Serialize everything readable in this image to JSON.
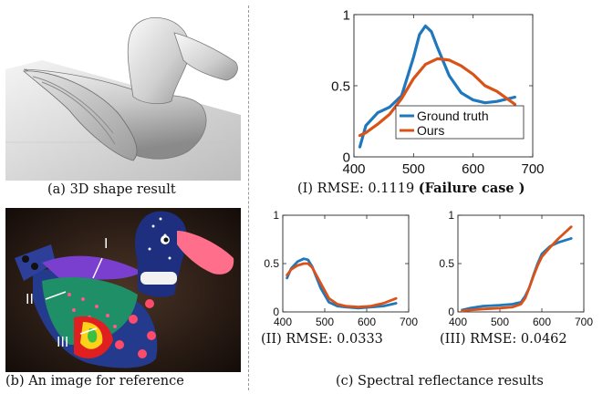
{
  "captions": {
    "a": "(a) 3D shape result",
    "b": "(b) An image for reference",
    "c": "(c) Spectral reflectance results",
    "I_prefix": "(I) RMSE: 0.1119",
    "I_note": "(Failure case )",
    "II": "(II) RMSE: 0.0333",
    "III": "(III) RMSE: 0.0462"
  },
  "photo_labels": {
    "I": "I",
    "II": "II",
    "III": "III"
  },
  "colors": {
    "ground_truth": "#1f77bd",
    "ours": "#d95319"
  },
  "chart_data": [
    {
      "type": "line",
      "id": "I",
      "xlim": [
        400,
        700
      ],
      "ylim": [
        0,
        1
      ],
      "xticks": [
        400,
        500,
        600,
        700
      ],
      "yticks": [
        0,
        0.5,
        1
      ],
      "legend_position": "bottom-center",
      "series": [
        {
          "name": "Ground truth",
          "color": "#1f77bd",
          "x": [
            410,
            420,
            440,
            460,
            480,
            500,
            510,
            520,
            530,
            540,
            560,
            580,
            600,
            620,
            640,
            670
          ],
          "y": [
            0.07,
            0.22,
            0.31,
            0.35,
            0.43,
            0.7,
            0.86,
            0.92,
            0.88,
            0.77,
            0.57,
            0.45,
            0.4,
            0.38,
            0.39,
            0.42
          ]
        },
        {
          "name": "Ours",
          "color": "#d95319",
          "x": [
            410,
            420,
            440,
            460,
            480,
            500,
            520,
            540,
            560,
            580,
            600,
            620,
            640,
            670
          ],
          "y": [
            0.15,
            0.17,
            0.23,
            0.3,
            0.41,
            0.55,
            0.65,
            0.69,
            0.68,
            0.64,
            0.58,
            0.5,
            0.46,
            0.37
          ]
        }
      ]
    },
    {
      "type": "line",
      "id": "II",
      "xlim": [
        400,
        700
      ],
      "ylim": [
        0,
        1
      ],
      "xticks": [
        400,
        500,
        600,
        700
      ],
      "yticks": [
        0,
        0.5,
        1
      ],
      "series": [
        {
          "color": "#1f77bd",
          "x": [
            410,
            420,
            435,
            450,
            460,
            470,
            490,
            510,
            530,
            550,
            580,
            610,
            640,
            670
          ],
          "y": [
            0.35,
            0.45,
            0.52,
            0.55,
            0.54,
            0.47,
            0.25,
            0.1,
            0.06,
            0.05,
            0.04,
            0.05,
            0.06,
            0.09
          ]
        },
        {
          "color": "#d95319",
          "x": [
            410,
            420,
            435,
            450,
            460,
            470,
            490,
            510,
            530,
            550,
            580,
            610,
            640,
            670
          ],
          "y": [
            0.38,
            0.44,
            0.48,
            0.5,
            0.5,
            0.46,
            0.3,
            0.14,
            0.08,
            0.06,
            0.05,
            0.06,
            0.09,
            0.14
          ]
        }
      ]
    },
    {
      "type": "line",
      "id": "III",
      "xlim": [
        400,
        700
      ],
      "ylim": [
        0,
        1
      ],
      "xticks": [
        400,
        500,
        600,
        700
      ],
      "yticks": [
        0,
        0.5,
        1
      ],
      "series": [
        {
          "color": "#1f77bd",
          "x": [
            410,
            430,
            460,
            500,
            530,
            550,
            560,
            570,
            580,
            590,
            600,
            620,
            640,
            670
          ],
          "y": [
            0.02,
            0.04,
            0.06,
            0.07,
            0.08,
            0.1,
            0.16,
            0.25,
            0.38,
            0.5,
            0.6,
            0.68,
            0.72,
            0.76
          ]
        },
        {
          "color": "#d95319",
          "x": [
            410,
            430,
            460,
            500,
            530,
            550,
            560,
            570,
            580,
            590,
            600,
            620,
            640,
            670
          ],
          "y": [
            0.01,
            0.02,
            0.03,
            0.04,
            0.05,
            0.08,
            0.14,
            0.25,
            0.37,
            0.48,
            0.57,
            0.67,
            0.76,
            0.88
          ]
        }
      ]
    }
  ]
}
